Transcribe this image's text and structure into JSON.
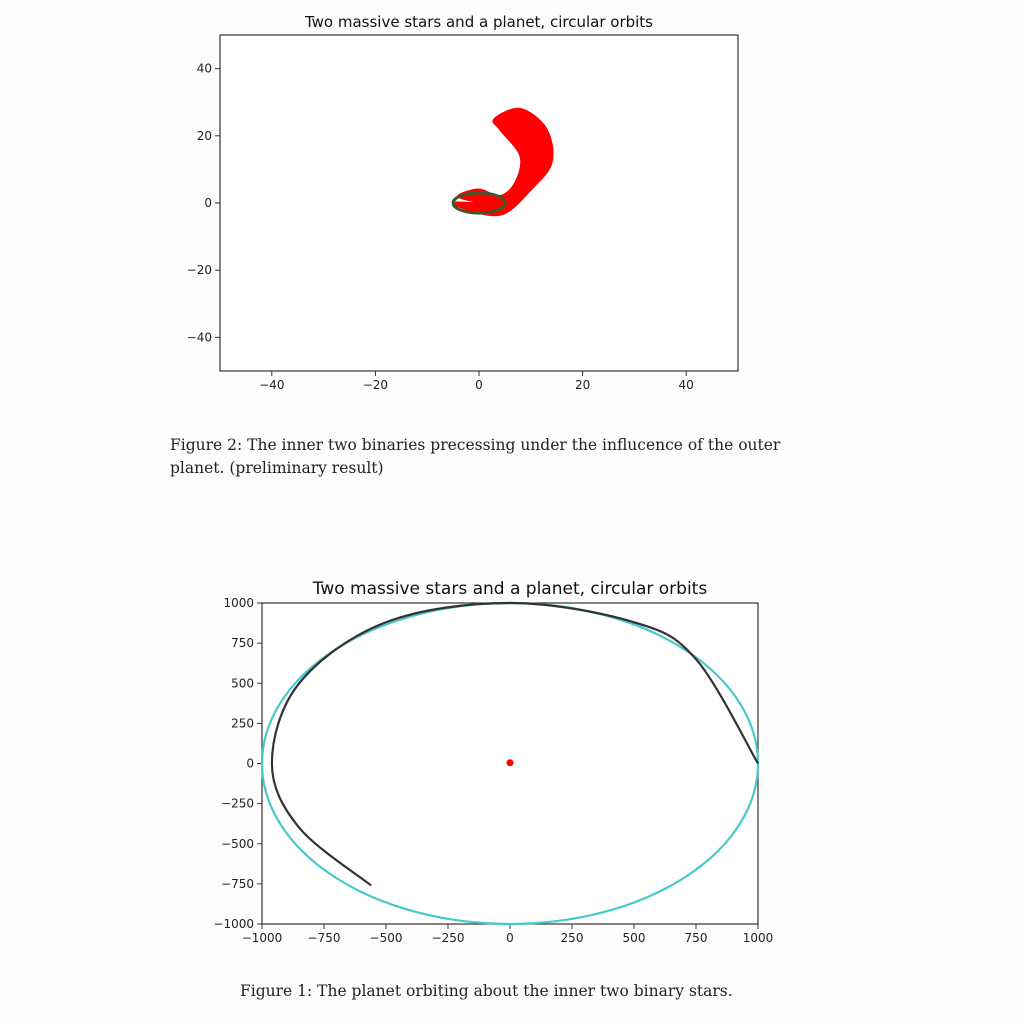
{
  "charts": [
    {
      "id": "top",
      "title": "Two massive stars and a planet, circular orbits",
      "xlim": [
        -50,
        50
      ],
      "ylim": [
        -50,
        50
      ],
      "xticks": [
        -40,
        -20,
        0,
        20,
        40
      ],
      "yticks": [
        -40,
        -20,
        0,
        20,
        40
      ],
      "xtick_labels": [
        "−40",
        "−20",
        "0",
        "20",
        "40"
      ],
      "ytick_labels": [
        "−40",
        "−20",
        "0",
        "20",
        "40"
      ],
      "caption": "Figure 2: The inner two binaries precessing under the influcence of the outer planet. (preliminary result)"
    },
    {
      "id": "bottom",
      "title": "Two massive stars and a planet, circular orbits",
      "xlim": [
        -1000,
        1000
      ],
      "ylim": [
        -1000,
        1000
      ],
      "xticks": [
        -1000,
        -750,
        -500,
        -250,
        0,
        250,
        500,
        750,
        1000
      ],
      "yticks": [
        1000,
        750,
        500,
        250,
        0,
        -250,
        -500,
        -750,
        -1000
      ],
      "xtick_labels": [
        "−1000",
        "−750",
        "−500",
        "−250",
        "0",
        "250",
        "500",
        "750",
        "1000"
      ],
      "ytick_labels": [
        "1000",
        "750",
        "500",
        "250",
        "0",
        "−250",
        "−500",
        "−750",
        "−1000"
      ],
      "caption": "Figure 1: The planet orbiting about the inner two binary stars."
    }
  ],
  "chart_data": [
    {
      "type": "line",
      "title": "Two massive stars and a planet, circular orbits",
      "xlim": [
        -50,
        50
      ],
      "ylim": [
        -50,
        50
      ],
      "grid": false,
      "series": [
        {
          "color": "#ff0000",
          "description_points": [
            [
              0,
              0
            ],
            [
              -4,
              2
            ],
            [
              0,
              4
            ],
            [
              4,
              2
            ],
            [
              7,
              6
            ],
            [
              8,
              14
            ],
            [
              4,
              22
            ],
            [
              3,
              25
            ],
            [
              8,
              28
            ],
            [
              13,
              22
            ],
            [
              14,
              12
            ],
            [
              10,
              4
            ],
            [
              5,
              -3
            ],
            [
              0,
              -3
            ],
            [
              -5,
              0
            ]
          ]
        },
        {
          "color": "#3a5a2a",
          "center": [
            0,
            0
          ],
          "rx": 5,
          "ry": 3
        }
      ]
    },
    {
      "type": "line",
      "title": "Two massive stars and a planet, circular orbits",
      "xlim": [
        -1000,
        1000
      ],
      "ylim": [
        -1000,
        1000
      ],
      "grid": false,
      "series": [
        {
          "color": "#48c9c9",
          "center": [
            0,
            0
          ],
          "rx": 1000,
          "ry": 1000
        },
        {
          "color": "#333333",
          "arc_start": [
            1000,
            0
          ],
          "arc_end": [
            -560,
            -760
          ],
          "arc_points": [
            [
              1000,
              0
            ],
            [
              750,
              650
            ],
            [
              500,
              880
            ],
            [
              0,
              1000
            ],
            [
              -500,
              880
            ],
            [
              -850,
              500
            ],
            [
              -960,
              0
            ],
            [
              -850,
              -400
            ],
            [
              -560,
              -760
            ]
          ]
        },
        {
          "color": "#ff0000",
          "points": [
            [
              0,
              5
            ]
          ]
        }
      ]
    }
  ]
}
